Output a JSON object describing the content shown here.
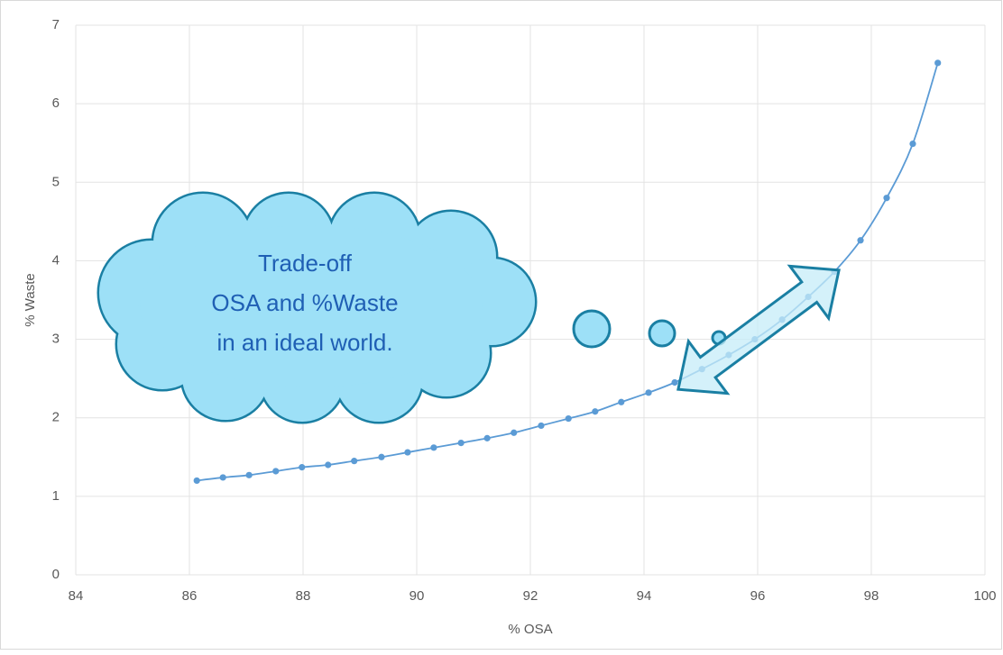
{
  "chart_data": {
    "type": "scatter",
    "annotation": [
      "Trade-off",
      "OSA and %Waste",
      "in an ideal world."
    ],
    "xlabel": "% OSA",
    "ylabel": "% Waste",
    "x": [
      86.13,
      86.59,
      87.05,
      87.52,
      87.98,
      88.44,
      88.9,
      89.38,
      89.84,
      90.3,
      90.78,
      91.24,
      91.71,
      92.19,
      92.67,
      93.14,
      93.6,
      94.08,
      94.54,
      95.02,
      95.49,
      95.95,
      96.43,
      96.89,
      97.35,
      97.81,
      98.27,
      98.73,
      99.17
    ],
    "series": [
      {
        "name": "% Waste",
        "color": "#5b9bd5",
        "values": [
          1.2,
          1.24,
          1.27,
          1.32,
          1.37,
          1.4,
          1.45,
          1.5,
          1.56,
          1.62,
          1.68,
          1.74,
          1.81,
          1.9,
          1.99,
          2.08,
          2.2,
          2.32,
          2.45,
          2.62,
          2.8,
          3.0,
          3.25,
          3.54,
          3.86,
          4.26,
          4.8,
          5.49,
          6.52
        ]
      }
    ],
    "xlim": [
      84,
      100
    ],
    "xticks": [
      84,
      86,
      88,
      90,
      92,
      94,
      96,
      98,
      100
    ],
    "ylim": [
      0,
      7
    ],
    "yticks": [
      0,
      1,
      2,
      3,
      4,
      5,
      6,
      7
    ],
    "grid": true
  }
}
